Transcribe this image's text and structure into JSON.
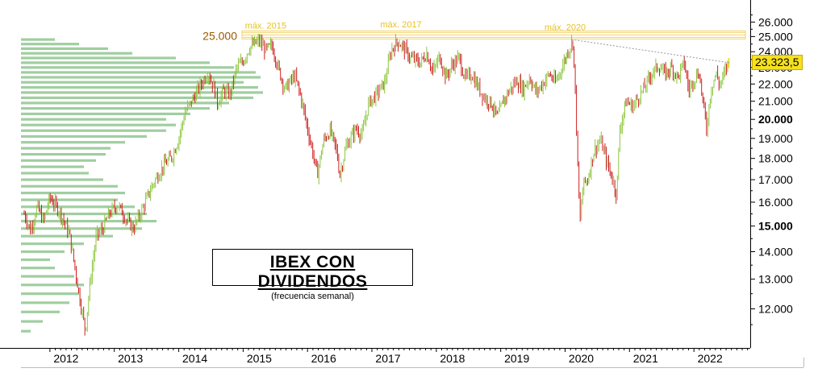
{
  "chart_data": {
    "type": "candlestick",
    "title": "IBEX CON DIVIDENDOS",
    "subtitle": "(frecuencia semanal)",
    "y_axis": {
      "side": "right",
      "ylim": [
        10800,
        27000
      ],
      "ticks": [
        {
          "value": 12000,
          "label": "12.000",
          "bold": false
        },
        {
          "value": 13000,
          "label": "13.000",
          "bold": false
        },
        {
          "value": 14000,
          "label": "14.000",
          "bold": false
        },
        {
          "value": 15000,
          "label": "15.000",
          "bold": true
        },
        {
          "value": 16000,
          "label": "16.000",
          "bold": false
        },
        {
          "value": 17000,
          "label": "17.000",
          "bold": false
        },
        {
          "value": 18000,
          "label": "18.000",
          "bold": false
        },
        {
          "value": 19000,
          "label": "19.000",
          "bold": false
        },
        {
          "value": 20000,
          "label": "20.000",
          "bold": true
        },
        {
          "value": 21000,
          "label": "21.000",
          "bold": false
        },
        {
          "value": 22000,
          "label": "22.000",
          "bold": false
        },
        {
          "value": 23000,
          "label": "23.000",
          "bold": false
        },
        {
          "value": 24000,
          "label": "24.000",
          "bold": false
        },
        {
          "value": 25000,
          "label": "25.000",
          "bold": false
        },
        {
          "value": 26000,
          "label": "26.000",
          "bold": false
        }
      ],
      "log_scale": true
    },
    "x_axis": {
      "range": [
        2011.55,
        2022.85
      ],
      "ticks": [
        {
          "value": 2012,
          "label": "2012"
        },
        {
          "value": 2013,
          "label": "2013"
        },
        {
          "value": 2014,
          "label": "2014"
        },
        {
          "value": 2015,
          "label": "2015"
        },
        {
          "value": 2016,
          "label": "2016"
        },
        {
          "value": 2017,
          "label": "2017"
        },
        {
          "value": 2018,
          "label": "2018"
        },
        {
          "value": 2019,
          "label": "2019"
        },
        {
          "value": 2020,
          "label": "2020"
        },
        {
          "value": 2021,
          "label": "2021"
        },
        {
          "value": 2022,
          "label": "2022"
        }
      ]
    },
    "colors": {
      "up": "#8cc63f",
      "down": "#cc2020",
      "volume_profile": "#8fc58f",
      "resistance_band": "#f2d36b",
      "annotation": "#e8c21a",
      "level_label": "#9a5a00",
      "trendline": "#999999",
      "badge": "#f6e11d"
    },
    "resistance": {
      "value": 25000,
      "label": "25.000"
    },
    "annotations": [
      {
        "label": "máx. 2015",
        "x": 2015.35,
        "y": 25100
      },
      {
        "label": "máx. 2017",
        "x": 2017.45,
        "y": 25200
      },
      {
        "label": "máx. 2020",
        "x": 2020.0,
        "y": 25000
      }
    ],
    "trendline": {
      "from": {
        "x": 2020.1,
        "y": 24800
      },
      "to": {
        "x": 2022.55,
        "y": 23300
      }
    },
    "last_price": {
      "value": 23323.5,
      "label": "23.323,5"
    },
    "price_path": [
      [
        2011.6,
        15500
      ],
      [
        2011.7,
        14800
      ],
      [
        2011.8,
        15800
      ],
      [
        2011.9,
        15200
      ],
      [
        2012.0,
        16200
      ],
      [
        2012.15,
        15600
      ],
      [
        2012.3,
        14700
      ],
      [
        2012.45,
        12500
      ],
      [
        2012.55,
        11300
      ],
      [
        2012.62,
        12800
      ],
      [
        2012.72,
        14600
      ],
      [
        2012.82,
        14900
      ],
      [
        2012.92,
        15500
      ],
      [
        2013.05,
        15900
      ],
      [
        2013.2,
        15200
      ],
      [
        2013.3,
        14900
      ],
      [
        2013.45,
        15800
      ],
      [
        2013.6,
        16800
      ],
      [
        2013.75,
        17600
      ],
      [
        2013.9,
        18100
      ],
      [
        2014.0,
        19000
      ],
      [
        2014.1,
        20400
      ],
      [
        2014.2,
        21000
      ],
      [
        2014.35,
        22000
      ],
      [
        2014.45,
        22700
      ],
      [
        2014.55,
        21800
      ],
      [
        2014.6,
        20900
      ],
      [
        2014.7,
        21600
      ],
      [
        2014.8,
        21400
      ],
      [
        2014.9,
        23000
      ],
      [
        2015.0,
        23400
      ],
      [
        2015.1,
        24300
      ],
      [
        2015.25,
        24700
      ],
      [
        2015.35,
        24100
      ],
      [
        2015.45,
        24400
      ],
      [
        2015.55,
        22900
      ],
      [
        2015.65,
        21700
      ],
      [
        2015.8,
        22500
      ],
      [
        2015.9,
        21200
      ],
      [
        2016.0,
        19500
      ],
      [
        2016.1,
        18000
      ],
      [
        2016.15,
        17200
      ],
      [
        2016.25,
        18900
      ],
      [
        2016.35,
        19400
      ],
      [
        2016.45,
        18400
      ],
      [
        2016.5,
        17200
      ],
      [
        2016.6,
        18600
      ],
      [
        2016.75,
        19500
      ],
      [
        2016.85,
        19200
      ],
      [
        2016.95,
        20900
      ],
      [
        2017.05,
        21300
      ],
      [
        2017.2,
        22100
      ],
      [
        2017.3,
        24100
      ],
      [
        2017.4,
        24700
      ],
      [
        2017.5,
        24200
      ],
      [
        2017.6,
        23600
      ],
      [
        2017.75,
        23300
      ],
      [
        2017.85,
        23900
      ],
      [
        2017.95,
        22700
      ],
      [
        2018.05,
        23700
      ],
      [
        2018.15,
        22400
      ],
      [
        2018.25,
        23200
      ],
      [
        2018.35,
        23600
      ],
      [
        2018.45,
        22300
      ],
      [
        2018.55,
        22600
      ],
      [
        2018.65,
        21800
      ],
      [
        2018.75,
        21200
      ],
      [
        2018.85,
        20900
      ],
      [
        2018.95,
        20100
      ],
      [
        2019.05,
        21100
      ],
      [
        2019.15,
        21700
      ],
      [
        2019.25,
        22200
      ],
      [
        2019.35,
        21700
      ],
      [
        2019.45,
        22400
      ],
      [
        2019.55,
        21500
      ],
      [
        2019.65,
        22000
      ],
      [
        2019.75,
        22600
      ],
      [
        2019.85,
        22100
      ],
      [
        2019.95,
        23000
      ],
      [
        2020.05,
        24100
      ],
      [
        2020.12,
        24700
      ],
      [
        2020.16,
        21300
      ],
      [
        2020.2,
        17200
      ],
      [
        2020.23,
        15100
      ],
      [
        2020.28,
        16800
      ],
      [
        2020.35,
        17000
      ],
      [
        2020.45,
        18400
      ],
      [
        2020.55,
        18900
      ],
      [
        2020.65,
        17800
      ],
      [
        2020.75,
        16900
      ],
      [
        2020.8,
        16300
      ],
      [
        2020.85,
        19500
      ],
      [
        2020.95,
        21000
      ],
      [
        2021.05,
        20700
      ],
      [
        2021.15,
        21300
      ],
      [
        2021.25,
        21900
      ],
      [
        2021.35,
        22700
      ],
      [
        2021.45,
        23100
      ],
      [
        2021.55,
        22600
      ],
      [
        2021.65,
        23000
      ],
      [
        2021.75,
        22400
      ],
      [
        2021.85,
        23300
      ],
      [
        2021.92,
        21600
      ],
      [
        2022.0,
        22300
      ],
      [
        2022.08,
        22700
      ],
      [
        2022.15,
        20700
      ],
      [
        2022.2,
        19400
      ],
      [
        2022.25,
        21300
      ],
      [
        2022.3,
        22200
      ],
      [
        2022.35,
        22600
      ],
      [
        2022.4,
        21900
      ],
      [
        2022.48,
        22700
      ],
      [
        2022.53,
        23320
      ]
    ],
    "volume_profile": [
      [
        11300,
        0.04
      ],
      [
        11600,
        0.09
      ],
      [
        11900,
        0.16
      ],
      [
        12200,
        0.2
      ],
      [
        12500,
        0.24
      ],
      [
        12800,
        0.26
      ],
      [
        13100,
        0.22
      ],
      [
        13400,
        0.14
      ],
      [
        13700,
        0.12
      ],
      [
        14000,
        0.18
      ],
      [
        14300,
        0.26
      ],
      [
        14600,
        0.38
      ],
      [
        14900,
        0.5
      ],
      [
        15200,
        0.56
      ],
      [
        15500,
        0.52
      ],
      [
        15800,
        0.47
      ],
      [
        16100,
        0.4
      ],
      [
        16400,
        0.43
      ],
      [
        16700,
        0.4
      ],
      [
        17000,
        0.34
      ],
      [
        17300,
        0.28
      ],
      [
        17600,
        0.26
      ],
      [
        17900,
        0.31
      ],
      [
        18200,
        0.35
      ],
      [
        18500,
        0.37
      ],
      [
        18800,
        0.43
      ],
      [
        19100,
        0.52
      ],
      [
        19400,
        0.6
      ],
      [
        19700,
        0.64
      ],
      [
        20000,
        0.6
      ],
      [
        20300,
        0.7
      ],
      [
        20600,
        0.78
      ],
      [
        20900,
        0.86
      ],
      [
        21200,
        0.96
      ],
      [
        21500,
        1.0
      ],
      [
        21800,
        0.98
      ],
      [
        22100,
        0.92
      ],
      [
        22400,
        0.99
      ],
      [
        22700,
        0.97
      ],
      [
        23000,
        0.88
      ],
      [
        23300,
        0.78
      ],
      [
        23600,
        0.64
      ],
      [
        23900,
        0.46
      ],
      [
        24200,
        0.36
      ],
      [
        24500,
        0.24
      ],
      [
        24800,
        0.14
      ]
    ]
  }
}
